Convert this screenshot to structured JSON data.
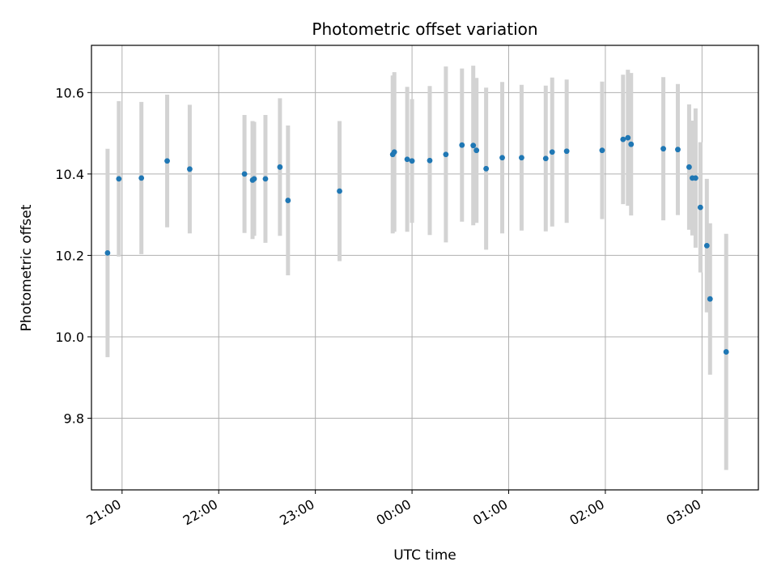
{
  "chart_data": {
    "type": "scatter",
    "title": "Photometric offset variation",
    "xlabel": "UTC time",
    "ylabel": "Photometric offset",
    "grid": true,
    "xlim": [
      "20:41",
      "03:35"
    ],
    "ylim": [
      9.624,
      10.716
    ],
    "x_ticks": [
      "21:00",
      "22:00",
      "23:00",
      "00:00",
      "01:00",
      "02:00",
      "03:00"
    ],
    "y_ticks": [
      "9.8",
      "10.0",
      "10.2",
      "10.4",
      "10.6"
    ],
    "colors": {
      "points": "#1f77b4",
      "error_bars": "#d3d3d3",
      "grid": "#b0b0b0"
    },
    "series": [
      {
        "points": [
          {
            "x": "20:51",
            "y": 10.206,
            "err": 0.256
          },
          {
            "x": "20:58",
            "y": 10.388,
            "err": 0.191
          },
          {
            "x": "21:12",
            "y": 10.39,
            "err": 0.187
          },
          {
            "x": "21:28",
            "y": 10.432,
            "err": 0.163
          },
          {
            "x": "21:42",
            "y": 10.412,
            "err": 0.158
          },
          {
            "x": "22:16",
            "y": 10.4,
            "err": 0.145
          },
          {
            "x": "22:21",
            "y": 10.385,
            "err": 0.145
          },
          {
            "x": "22:22",
            "y": 10.388,
            "err": 0.14
          },
          {
            "x": "22:29",
            "y": 10.388,
            "err": 0.157
          },
          {
            "x": "22:38",
            "y": 10.417,
            "err": 0.169
          },
          {
            "x": "22:43",
            "y": 10.335,
            "err": 0.184
          },
          {
            "x": "23:15",
            "y": 10.358,
            "err": 0.172
          },
          {
            "x": "23:48",
            "y": 10.448,
            "err": 0.194
          },
          {
            "x": "23:49",
            "y": 10.454,
            "err": 0.196
          },
          {
            "x": "23:57",
            "y": 10.436,
            "err": 0.178
          },
          {
            "x": "24:00",
            "y": 10.432,
            "err": 0.152
          },
          {
            "x": "24:11",
            "y": 10.433,
            "err": 0.183
          },
          {
            "x": "24:21",
            "y": 10.448,
            "err": 0.216
          },
          {
            "x": "24:31",
            "y": 10.471,
            "err": 0.188
          },
          {
            "x": "24:38",
            "y": 10.47,
            "err": 0.196
          },
          {
            "x": "24:40",
            "y": 10.458,
            "err": 0.178
          },
          {
            "x": "24:46",
            "y": 10.413,
            "err": 0.199
          },
          {
            "x": "24:56",
            "y": 10.44,
            "err": 0.186
          },
          {
            "x": "25:08",
            "y": 10.44,
            "err": 0.179
          },
          {
            "x": "25:23",
            "y": 10.438,
            "err": 0.179
          },
          {
            "x": "25:27",
            "y": 10.454,
            "err": 0.183
          },
          {
            "x": "25:36",
            "y": 10.456,
            "err": 0.176
          },
          {
            "x": "25:58",
            "y": 10.458,
            "err": 0.169
          },
          {
            "x": "26:11",
            "y": 10.485,
            "err": 0.159
          },
          {
            "x": "26:14",
            "y": 10.489,
            "err": 0.167
          },
          {
            "x": "26:16",
            "y": 10.473,
            "err": 0.175
          },
          {
            "x": "26:36",
            "y": 10.462,
            "err": 0.176
          },
          {
            "x": "26:45",
            "y": 10.46,
            "err": 0.161
          },
          {
            "x": "26:52",
            "y": 10.417,
            "err": 0.154
          },
          {
            "x": "26:54",
            "y": 10.39,
            "err": 0.141
          },
          {
            "x": "26:56",
            "y": 10.39,
            "err": 0.171
          },
          {
            "x": "26:59",
            "y": 10.318,
            "err": 0.16
          },
          {
            "x": "27:03",
            "y": 10.224,
            "err": 0.164
          },
          {
            "x": "27:05",
            "y": 10.093,
            "err": 0.186
          },
          {
            "x": "27:15",
            "y": 9.963,
            "err": 0.29
          }
        ]
      }
    ]
  }
}
